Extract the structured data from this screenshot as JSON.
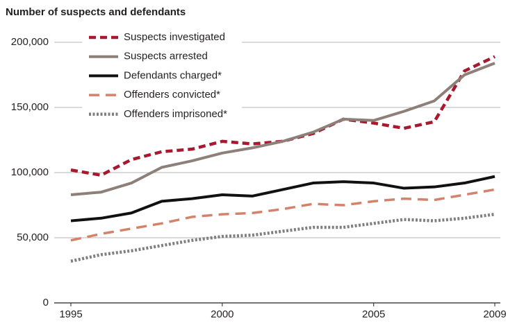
{
  "chart_data": {
    "type": "line",
    "title": "Number of suspects and defendants",
    "x": [
      1995,
      1996,
      1997,
      1998,
      1999,
      2000,
      2001,
      2002,
      2003,
      2004,
      2005,
      2006,
      2007,
      2008,
      2009
    ],
    "xlim": [
      1995,
      2009
    ],
    "xticks": [
      1995,
      2000,
      2005,
      2009
    ],
    "ylim": [
      0,
      200000
    ],
    "yticks": [
      0,
      {
        "value": 50000,
        "label": "50,000"
      },
      {
        "value": 100000,
        "label": "100,000"
      },
      {
        "value": 150000,
        "label": "150,000"
      },
      {
        "value": 200000,
        "label": "200,000"
      }
    ],
    "grid": true,
    "legend": "top-left",
    "series": [
      {
        "name": "Suspects investigated",
        "color": "#a6192e",
        "style": "dashed",
        "values": [
          102000,
          98000,
          110000,
          116000,
          118000,
          124000,
          122000,
          124000,
          130000,
          141000,
          138000,
          134000,
          139000,
          178000,
          189000
        ]
      },
      {
        "name": "Suspects arrested",
        "color": "#8c8079",
        "style": "solid",
        "values": [
          83000,
          85000,
          92000,
          104000,
          109000,
          115000,
          119000,
          124000,
          131000,
          141000,
          140000,
          147000,
          155000,
          175000,
          184000
        ]
      },
      {
        "name": "Defendants charged*",
        "color": "#111111",
        "style": "solid",
        "values": [
          63000,
          65000,
          69000,
          78000,
          80000,
          83000,
          82000,
          87000,
          92000,
          93000,
          92000,
          88000,
          89000,
          92000,
          97000
        ]
      },
      {
        "name": "Offenders convicted*",
        "color": "#d4826a",
        "style": "longdash",
        "values": [
          48000,
          53000,
          57000,
          61000,
          66000,
          68000,
          69000,
          72000,
          76000,
          75000,
          78000,
          80000,
          79000,
          83000,
          87000
        ]
      },
      {
        "name": "Offenders imprisoned*",
        "color": "#7f7f7f",
        "style": "dotted",
        "values": [
          32000,
          37000,
          40000,
          44000,
          48000,
          51000,
          52000,
          55000,
          58000,
          58000,
          61000,
          64000,
          63000,
          65000,
          68000
        ]
      }
    ]
  }
}
